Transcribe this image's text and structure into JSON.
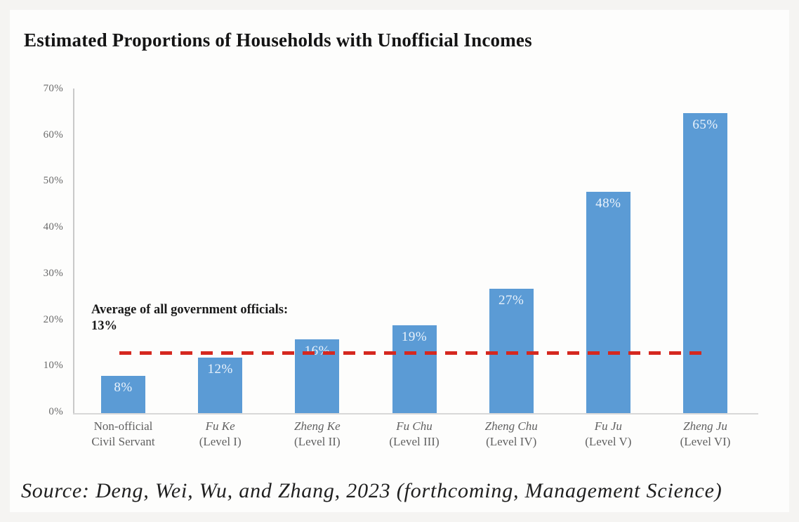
{
  "title": "Estimated Proportions of Households with Unofficial Incomes",
  "source": "Source: Deng, Wei, Wu, and Zhang, 2023 (forthcoming, Management Science)",
  "annotation": {
    "line1": "Average of all government officials:",
    "line2": "13%"
  },
  "colors": {
    "bar": "#5b9bd5",
    "bar_label_text": "#e9f2fb",
    "reference_line": "#d5281f",
    "axis_text": "#6a6a6a",
    "axis_line": "#c9c9c9",
    "title_text": "#141414",
    "page_background": "#f5f4f2",
    "card_background": "#fdfdfc"
  },
  "chart_data": {
    "type": "bar",
    "title": "Estimated Proportions of Households with Unofficial Incomes",
    "categories": [
      "Non-official Civil Servant",
      "Fu Ke (Level I)",
      "Zheng Ke (Level II)",
      "Fu Chu (Level III)",
      "Zheng Chu (Level IV)",
      "Fu Ju (Level V)",
      "Zheng Ju (Level VI)"
    ],
    "category_lines": [
      {
        "name": "Non-official",
        "level": "Civil Servant",
        "italic_name": false
      },
      {
        "name": "Fu Ke",
        "level": "(Level I)",
        "italic_name": true
      },
      {
        "name": "Zheng Ke",
        "level": "(Level II)",
        "italic_name": true
      },
      {
        "name": "Fu Chu",
        "level": "(Level III)",
        "italic_name": true
      },
      {
        "name": "Zheng Chu",
        "level": "(Level IV)",
        "italic_name": true
      },
      {
        "name": "Fu Ju",
        "level": "(Level V)",
        "italic_name": true
      },
      {
        "name": "Zheng Ju",
        "level": "(Level VI)",
        "italic_name": true
      }
    ],
    "values": [
      8,
      12,
      16,
      19,
      27,
      48,
      65
    ],
    "bar_labels": [
      "8%",
      "12%",
      "16%",
      "19%",
      "27%",
      "48%",
      "65%"
    ],
    "xlabel": "",
    "ylabel": "",
    "ylim": [
      0,
      70
    ],
    "ytick_step": 10,
    "yticks": [
      "0%",
      "10%",
      "20%",
      "30%",
      "40%",
      "50%",
      "60%",
      "70%"
    ],
    "grid": false,
    "legend": "none",
    "reference_line": {
      "value": 13,
      "label": "Average of all government officials: 13%",
      "style": "dashed",
      "color": "#d5281f"
    }
  }
}
